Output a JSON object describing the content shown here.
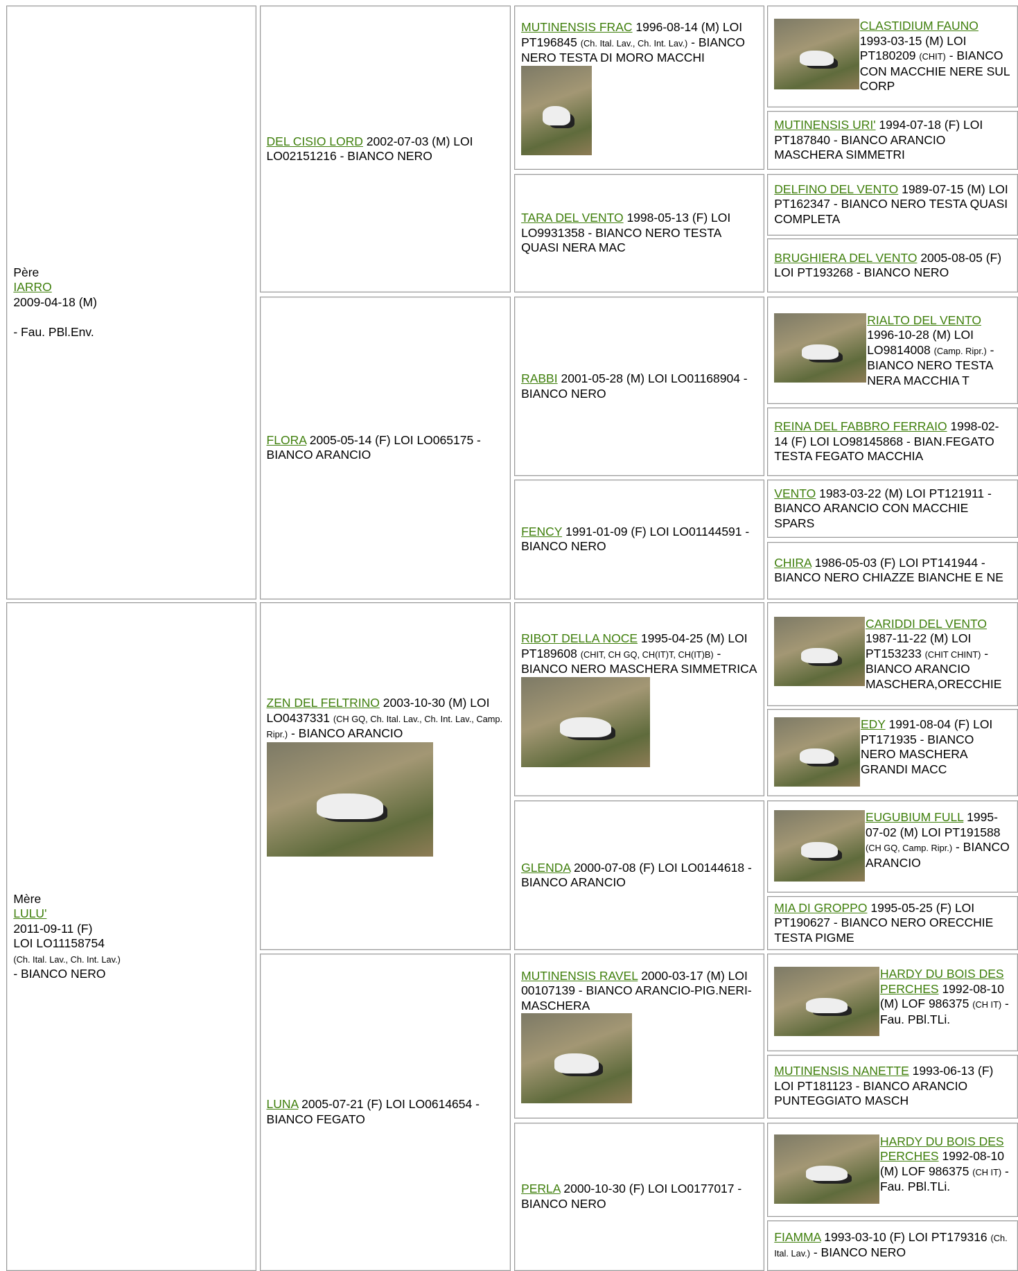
{
  "sire": {
    "label": "Père",
    "name": "IARRO",
    "lines": [
      "2009-04-18 (M)"
    ],
    "extra": "- Fau. PBl.Env."
  },
  "dam": {
    "label": "Mère",
    "name": "LULU'",
    "lines": [
      "2011-09-11 (F)",
      "LOI LO11158754"
    ],
    "titles": "(Ch. Ital. Lav., Ch. Int. Lav.)",
    "extra": "- BIANCO NERO"
  },
  "generation2": [
    {
      "name": "DEL CISIO LORD",
      "info": "2002-07-03 (M) LOI LO02151216 - BIANCO NERO"
    },
    {
      "name": "FLORA",
      "info": "2005-05-14 (F) LOI LO065175 - BIANCO ARANCIO"
    },
    {
      "name": "ZEN DEL FELTRINO",
      "info": "2003-10-30 (M) LOI LO0437331",
      "titles": "(CH GQ, Ch. Ital. Lav., Ch. Int. Lav., Camp. Ripr.)",
      "rest": "- BIANCO ARANCIO"
    },
    {
      "name": "LUNA",
      "info": "2005-07-21 (F) LOI LO0614654 - BIANCO FEGATO"
    }
  ],
  "generation3": [
    {
      "name": "MUTINENSIS FRAC",
      "info": "1996-08-14 (M) LOI PT196845",
      "titles": "(Ch. Ital. Lav., Ch. Int. Lav.)",
      "rest": "- BIANCO NERO TESTA DI MORO MACCHI"
    },
    {
      "name": "TARA DEL VENTO",
      "info": "1998-05-13 (F) LOI LO9931358 - BIANCO NERO TESTA QUASI NERA MAC"
    },
    {
      "name": "RABBI",
      "info": "2001-05-28 (M) LOI LO01168904 - BIANCO NERO"
    },
    {
      "name": "FENCY",
      "info": "1991-01-09 (F) LOI LO01144591 - BIANCO NERO"
    },
    {
      "name": "RIBOT DELLA NOCE",
      "info": "1995-04-25 (M) LOI PT189608",
      "titles": "(CHIT, CH GQ, CH(IT)T, CH(IT)B)",
      "rest": "- BIANCO NERO MASCHERA SIMMETRICA"
    },
    {
      "name": "GLENDA",
      "info": "2000-07-08 (F) LOI LO0144618 - BIANCO ARANCIO"
    },
    {
      "name": "MUTINENSIS RAVEL",
      "info": "2000-03-17 (M) LOI 00107139 - BIANCO ARANCIO-PIG.NERI-MASCHERA"
    },
    {
      "name": "PERLA",
      "info": "2000-10-30 (F) LOI LO0177017 - BIANCO NERO"
    }
  ],
  "generation4": [
    {
      "name": "CLASTIDIUM FAUNO",
      "info": "1993-03-15 (M) LOI PT180209",
      "titles": "(CHIT)",
      "rest": "- BIANCO CON MACCHIE NERE SUL CORP"
    },
    {
      "name": "MUTINENSIS URI'",
      "info": "1994-07-18 (F) LOI PT187840 - BIANCO ARANCIO MASCHERA SIMMETRI"
    },
    {
      "name": "DELFINO DEL VENTO",
      "info": "1989-07-15 (M) LOI PT162347 - BIANCO NERO TESTA QUASI COMPLETA"
    },
    {
      "name": "BRUGHIERA DEL VENTO",
      "info": "2005-08-05 (F) LOI PT193268 - BIANCO NERO"
    },
    {
      "name": "RIALTO DEL VENTO",
      "info": "1996-10-28 (M) LOI LO9814008",
      "titles": "(Camp. Ripr.)",
      "rest": "- BIANCO NERO TESTA NERA MACCHIA T"
    },
    {
      "name": "REINA DEL FABBRO FERRAIO",
      "info": "1998-02-14 (F) LOI LO98145868 - BIAN.FEGATO TESTA FEGATO MACCHIA"
    },
    {
      "name": "VENTO",
      "info": "1983-03-22 (M) LOI PT121911 - BIANCO ARANCIO CON MACCHIE SPARS"
    },
    {
      "name": "CHIRA",
      "info": "1986-05-03 (F) LOI PT141944 - BIANCO NERO CHIAZZE BIANCHE E NE"
    },
    {
      "name": "CARIDDI DEL VENTO",
      "info": "1987-11-22 (M) LOI PT153233",
      "titles": "(CHIT CHINT)",
      "rest": "- BIANCO ARANCIO MASCHERA,ORECCHIE"
    },
    {
      "name": "EDY",
      "info": "1991-08-04 (F) LOI PT171935 - BIANCO NERO MASCHERA GRANDI MACC"
    },
    {
      "name": "EUGUBIUM FULL",
      "info": "1995-07-02 (M) LOI PT191588",
      "titles": "(CH GQ, Camp. Ripr.)",
      "rest": "- BIANCO ARANCIO"
    },
    {
      "name": "MIA DI GROPPO",
      "info": "1995-05-25 (F) LOI PT190627 - BIANCO NERO ORECCHIE TESTA PIGME"
    },
    {
      "name": "HARDY DU BOIS DES PERCHES",
      "info": "1992-08-10 (M) LOF 986375",
      "titles": "(CH IT)",
      "rest": "- Fau. PBl.TLi."
    },
    {
      "name": "MUTINENSIS NANETTE",
      "info": "1993-06-13 (F) LOI PT181123 - BIANCO ARANCIO PUNTEGGIATO MASCH"
    },
    {
      "name": "HARDY DU BOIS DES PERCHES",
      "info": "1992-08-10 (M) LOF 986375",
      "titles": "(CH IT)",
      "rest": "- Fau. PBl.TLi."
    },
    {
      "name": "FIAMMA",
      "info": "1993-03-10 (F) LOI PT179316",
      "titles": "(Ch. Ital. Lav.)",
      "rest": "- BIANCO NERO"
    }
  ]
}
